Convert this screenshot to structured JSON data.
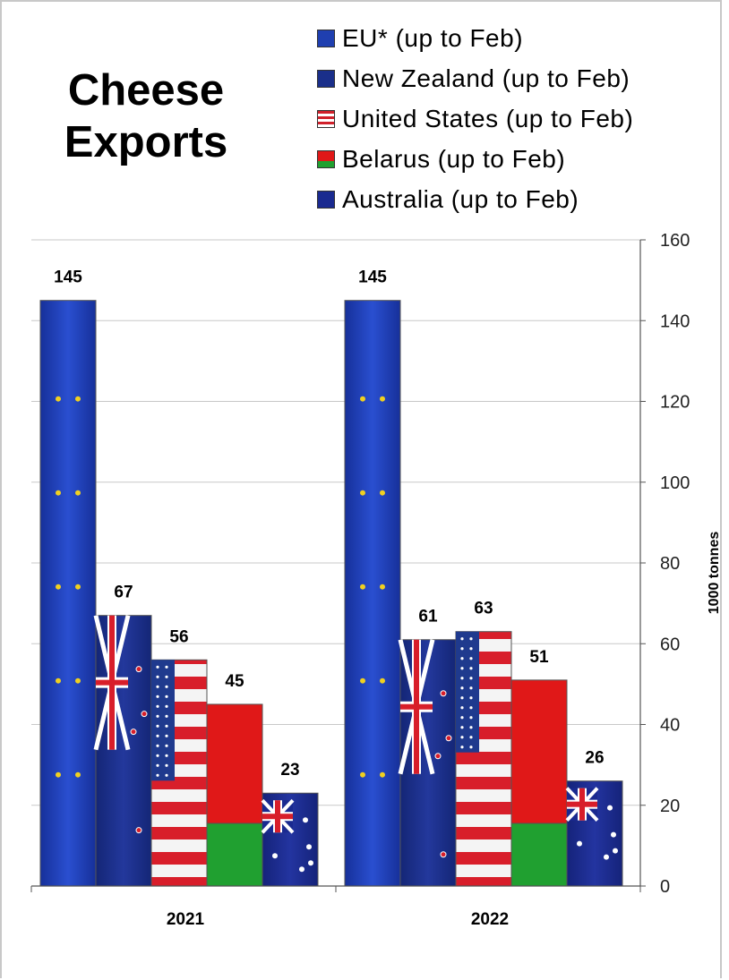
{
  "chart_data": {
    "type": "bar",
    "title": "Cheese Exports",
    "title_lines": [
      "Cheese",
      "Exports"
    ],
    "categories": [
      "2021",
      "2022"
    ],
    "series": [
      {
        "name": "EU* (up to Feb)",
        "values": [
          145,
          145
        ],
        "color": "#1f3fb0"
      },
      {
        "name": "New Zealand (up to Feb)",
        "values": [
          67,
          61
        ],
        "color": "#1a2f8a"
      },
      {
        "name": "United States (up to Feb)",
        "values": [
          56,
          63
        ],
        "color": "#d0202a"
      },
      {
        "name": "Belarus (up to Feb)",
        "values": [
          45,
          51
        ],
        "color": "#e01818"
      },
      {
        "name": "Australia (up to Feb)",
        "values": [
          23,
          26
        ],
        "color": "#1a2a90"
      }
    ],
    "xlabel": "",
    "ylabel": "1000 tonnes",
    "ylim": [
      0,
      160
    ],
    "yticks": [
      0,
      20,
      40,
      60,
      80,
      100,
      120,
      140,
      160
    ],
    "y_axis_side": "right",
    "grid": true,
    "legend": "top-right"
  }
}
